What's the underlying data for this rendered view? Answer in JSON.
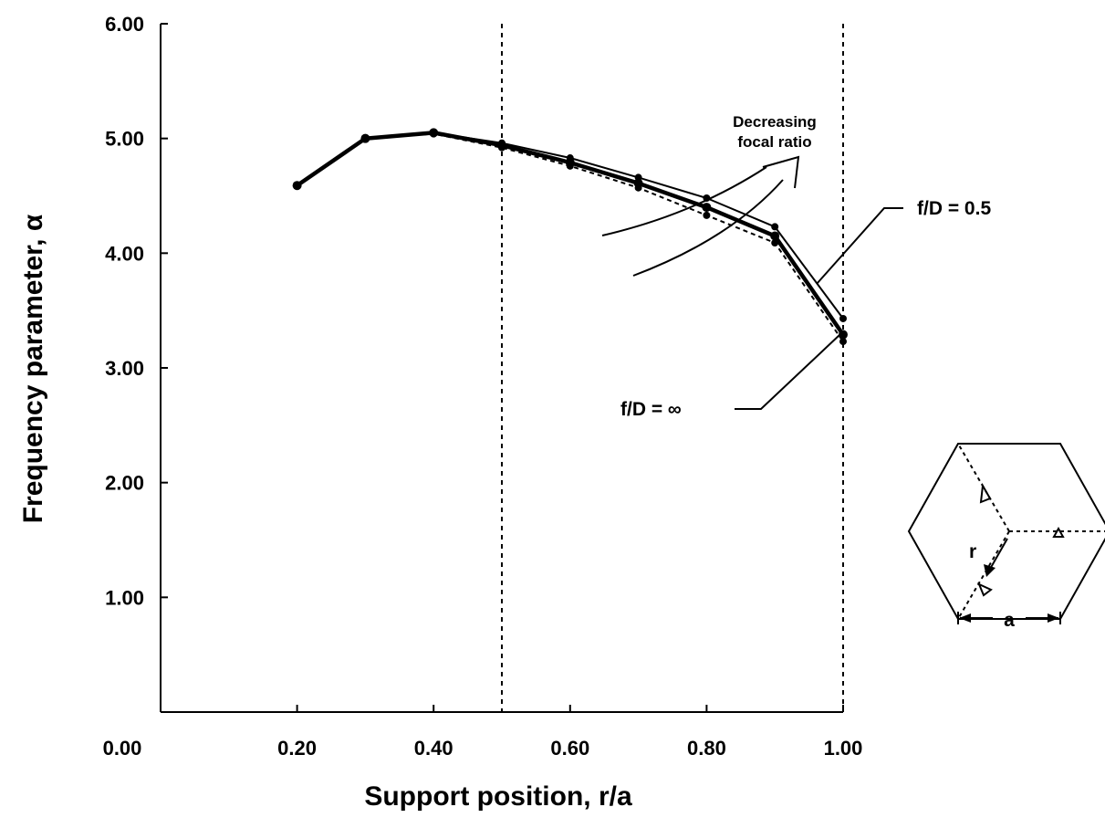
{
  "chart_data": {
    "type": "line",
    "xlabel": "Support position, r/a",
    "ylabel": "Frequency parameter, α",
    "xlim": [
      0.0,
      1.0
    ],
    "ylim": [
      0.0,
      6.0
    ],
    "x_tick_labels": [
      "0.00",
      "0.20",
      "0.40",
      "0.60",
      "0.80",
      "1.00"
    ],
    "y_tick_labels": [
      "1.00",
      "2.00",
      "3.00",
      "4.00",
      "5.00",
      "6.00"
    ],
    "vertical_reference_lines": [
      0.5,
      1.0
    ],
    "grid": false,
    "series": [
      {
        "name": "f/D = 0.5",
        "style": "solid-thin",
        "x": [
          0.2,
          0.3,
          0.4,
          0.5,
          0.6,
          0.7,
          0.8,
          0.9,
          1.0
        ],
        "y": [
          4.59,
          5.0,
          5.05,
          4.96,
          4.83,
          4.66,
          4.48,
          4.23,
          3.43
        ]
      },
      {
        "name": "",
        "style": "solid-thick",
        "x": [
          0.2,
          0.3,
          0.4,
          0.5,
          0.6,
          0.7,
          0.8,
          0.9,
          1.0
        ],
        "y": [
          4.59,
          5.0,
          5.05,
          4.94,
          4.79,
          4.61,
          4.4,
          4.15,
          3.29
        ]
      },
      {
        "name": "f/D = ∞",
        "style": "dashed",
        "x": [
          0.2,
          0.3,
          0.4,
          0.5,
          0.6,
          0.7,
          0.8,
          0.9,
          1.0
        ],
        "y": [
          4.59,
          5.0,
          5.04,
          4.92,
          4.76,
          4.57,
          4.33,
          4.09,
          3.23
        ]
      }
    ],
    "annotations": {
      "decreasing_line1": "Decreasing",
      "decreasing_line2": "focal ratio",
      "label_fd05": "f/D = 0.5",
      "label_fdinf": "f/D = ∞"
    },
    "inset": {
      "label_r": "r",
      "label_a": "a"
    }
  }
}
